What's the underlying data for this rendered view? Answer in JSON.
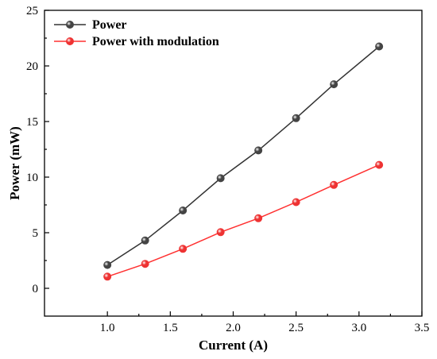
{
  "chart_data": {
    "type": "line",
    "xlabel": "Current (A)",
    "ylabel": "Power (mW)",
    "xlim": [
      0.5,
      3.5
    ],
    "ylim": [
      -2.5,
      25
    ],
    "xticks": [
      1.0,
      1.5,
      2.0,
      2.5,
      3.0,
      3.5
    ],
    "xtick_labels": [
      "1.0",
      "1.5",
      "2.0",
      "2.5",
      "3.0",
      "3.5"
    ],
    "yticks": [
      0,
      5,
      10,
      15,
      20,
      25
    ],
    "ytick_labels": [
      "0",
      "5",
      "10",
      "15",
      "20",
      "25"
    ],
    "grid": false,
    "legend_position": "top-left",
    "series": [
      {
        "name": "Power",
        "color": "#444444",
        "line_color": "#333333",
        "x": [
          1.0,
          1.3,
          1.6,
          1.9,
          2.2,
          2.5,
          2.8,
          3.16
        ],
        "values": [
          2.1,
          4.3,
          7.0,
          9.9,
          12.4,
          15.3,
          18.35,
          21.75
        ]
      },
      {
        "name": "Power with modulation",
        "color": "#ee3333",
        "line_color": "#ff3030",
        "x": [
          1.0,
          1.3,
          1.6,
          1.9,
          2.2,
          2.5,
          2.8,
          3.16
        ],
        "values": [
          1.05,
          2.2,
          3.55,
          5.05,
          6.3,
          7.75,
          9.3,
          11.1
        ]
      }
    ]
  }
}
